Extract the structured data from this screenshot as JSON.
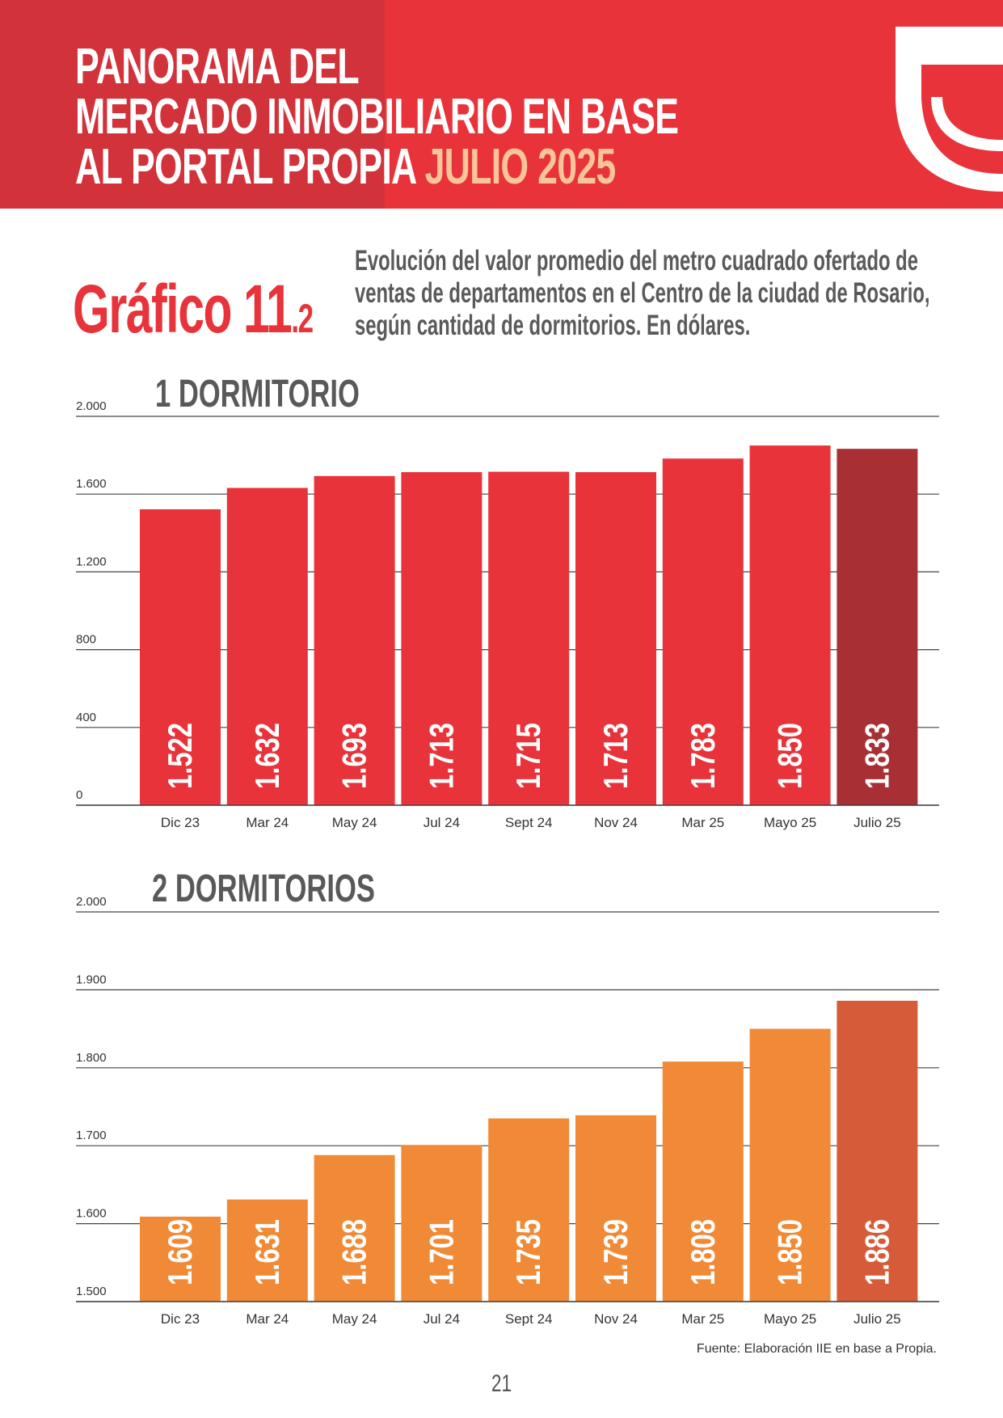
{
  "header": {
    "title_lines": [
      "PANORAMA DEL",
      "MERCADO INMOBILIARIO EN BASE",
      "AL PORTAL PROPIA"
    ],
    "title_highlight": "JULIO 2025",
    "colors": {
      "red": "#e8333a",
      "dark_red": "#d2323a",
      "highlight": "#f9c49a"
    }
  },
  "figure": {
    "label": "Gráfico 11",
    "label_suffix": ".2",
    "description_lines": [
      "Evolución del valor promedio del metro cuadrado ofertado de",
      "ventas de departamentos en el Centro de la ciudad de Rosario,",
      "según cantidad de dormitorios. En dólares."
    ]
  },
  "chart_data": [
    {
      "type": "bar",
      "title": "1 DORMITORIO",
      "categories": [
        "Dic 23",
        "Mar 24",
        "May 24",
        "Jul 24",
        "Sept 24",
        "Nov 24",
        "Mar 25",
        "Mayo 25",
        "Julio 25"
      ],
      "values": [
        1522,
        1632,
        1693,
        1713,
        1715,
        1713,
        1783,
        1850,
        1833
      ],
      "value_labels": [
        "1.522",
        "1.632",
        "1.693",
        "1.713",
        "1.715",
        "1.713",
        "1.783",
        "1.850",
        "1.833"
      ],
      "yticks": [
        0,
        400,
        800,
        1200,
        1600,
        2000
      ],
      "ytick_labels": [
        "0",
        "400",
        "800",
        "1.200",
        "1.600",
        "2.000"
      ],
      "ylim": [
        0,
        2000
      ],
      "grid": true,
      "color": "#e8333a",
      "highlight_color": "#a83035"
    },
    {
      "type": "bar",
      "title": "2 DORMITORIOS",
      "categories": [
        "Dic 23",
        "Mar 24",
        "May 24",
        "Jul 24",
        "Sept 24",
        "Nov 24",
        "Mar 25",
        "Mayo 25",
        "Julio 25"
      ],
      "values": [
        1609,
        1631,
        1688,
        1701,
        1735,
        1739,
        1808,
        1850,
        1886
      ],
      "value_labels": [
        "1.609",
        "1.631",
        "1.688",
        "1.701",
        "1.735",
        "1.739",
        "1.808",
        "1.850",
        "1.886"
      ],
      "yticks": [
        1500,
        1600,
        1700,
        1800,
        1900,
        2000
      ],
      "ytick_labels": [
        "1.500",
        "1.600",
        "1.700",
        "1.800",
        "1.900",
        "2.000"
      ],
      "ylim": [
        1500,
        2000
      ],
      "grid": true,
      "color": "#f18a36",
      "highlight_color": "#d65c39"
    }
  ],
  "footer": {
    "source": "Fuente: Elaboración IIE en base a Propia.",
    "page_number": "21"
  }
}
